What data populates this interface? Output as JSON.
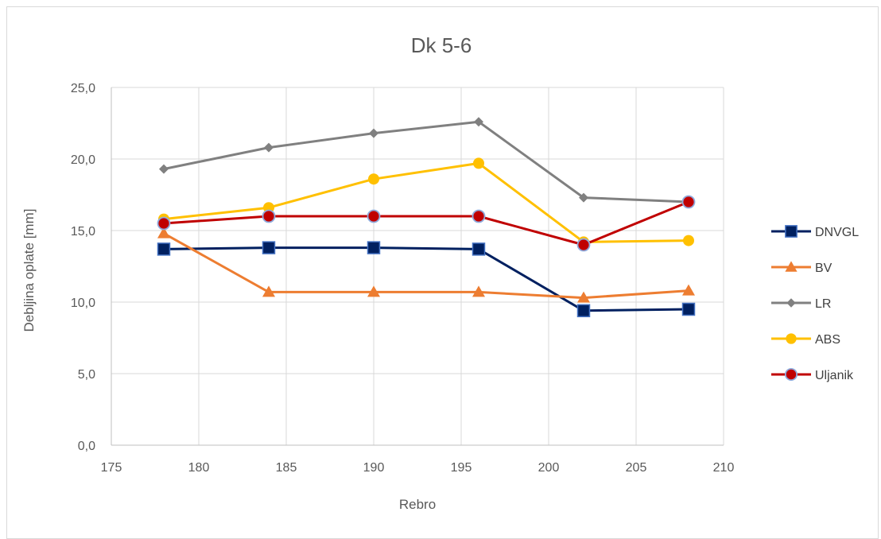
{
  "chart_data": {
    "type": "line",
    "title": "Dk 5-6",
    "xlabel": "Rebro",
    "ylabel": "Debljina oplate [mm]",
    "xlim": [
      175,
      210
    ],
    "ylim": [
      0,
      25
    ],
    "x_ticks": [
      "175",
      "180",
      "185",
      "190",
      "195",
      "200",
      "205",
      "210"
    ],
    "y_ticks": [
      "0,0",
      "5,0",
      "10,0",
      "15,0",
      "20,0",
      "25,0"
    ],
    "grid": true,
    "legend_position": "right",
    "x": [
      178,
      184,
      190,
      196,
      202,
      208
    ],
    "series": [
      {
        "name": "DNVGL",
        "color": "#002060",
        "marker": "square",
        "values": [
          13.7,
          13.8,
          13.8,
          13.7,
          9.4,
          9.5
        ]
      },
      {
        "name": "BV",
        "color": "#ED7D31",
        "marker": "triangle",
        "values": [
          14.8,
          10.7,
          10.7,
          10.7,
          10.3,
          10.8
        ]
      },
      {
        "name": "LR",
        "color": "#808080",
        "marker": "diamond",
        "values": [
          19.3,
          20.8,
          21.8,
          22.6,
          17.3,
          17.0
        ]
      },
      {
        "name": "ABS",
        "color": "#FFC000",
        "marker": "circle",
        "values": [
          15.8,
          16.6,
          18.6,
          19.7,
          14.2,
          14.3
        ]
      },
      {
        "name": "Uljanik",
        "color": "#C00000",
        "marker": "circle-outlined",
        "values": [
          15.5,
          16.0,
          16.0,
          16.0,
          14.0,
          17.0
        ]
      }
    ]
  }
}
